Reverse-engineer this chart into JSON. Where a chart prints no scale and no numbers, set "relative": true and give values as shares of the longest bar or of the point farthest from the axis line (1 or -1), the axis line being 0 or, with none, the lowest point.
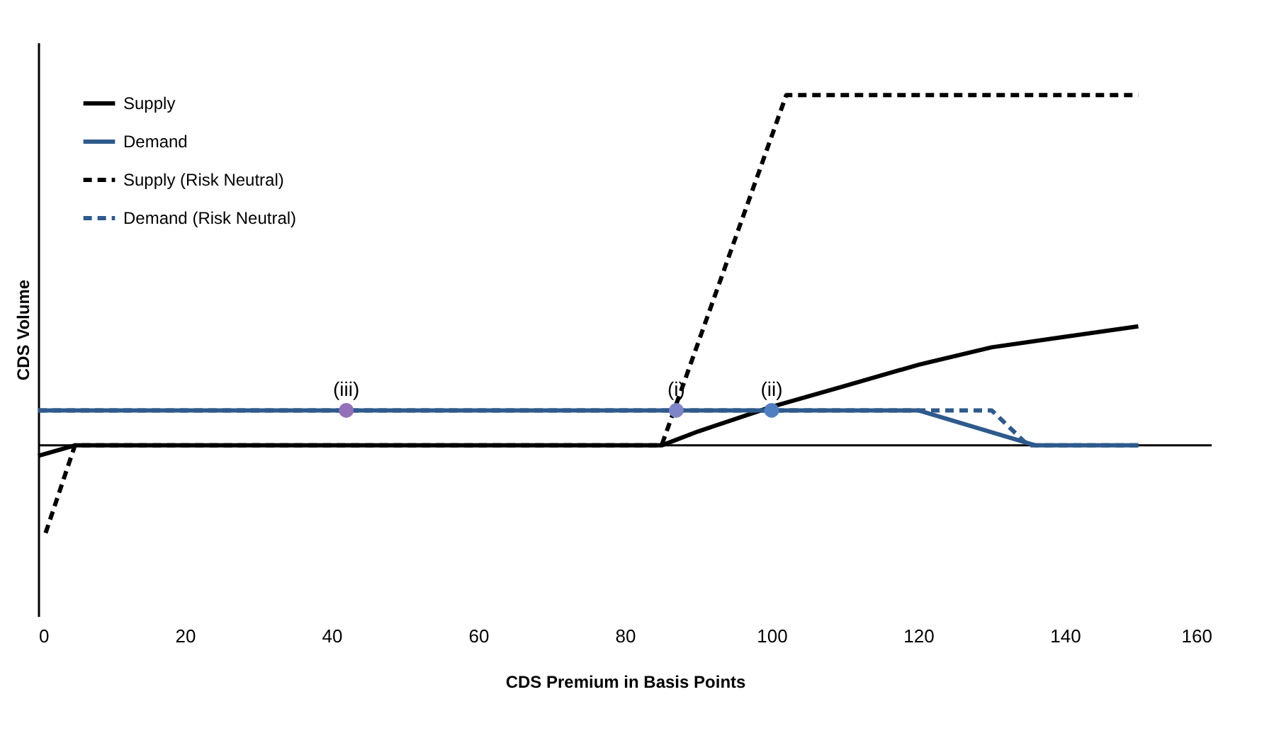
{
  "chart_data": {
    "type": "line",
    "relative": true,
    "xlabel": "CDS Premium in Basis Points",
    "ylabel": "CDS Volume",
    "xlim": [
      0,
      160
    ],
    "xticks": [
      0,
      20,
      40,
      60,
      80,
      100,
      120,
      140,
      160
    ],
    "legend": "top left",
    "grid": false,
    "series": [
      {
        "name": "Supply",
        "color": "#000000",
        "line_style": "solid",
        "x": [
          0,
          5,
          85,
          90,
          100,
          110,
          120,
          130,
          140,
          150
        ],
        "values": [
          -0.03,
          0,
          0,
          0.04,
          0.11,
          0.17,
          0.23,
          0.28,
          0.31,
          0.34
        ]
      },
      {
        "name": "Demand",
        "color": "#2e5a8c",
        "line_style": "solid",
        "x": [
          0,
          120,
          136,
          150
        ],
        "values": [
          0.1,
          0.1,
          0,
          0
        ]
      },
      {
        "name": "Supply (Risk Neutral)",
        "color": "#000000",
        "line_style": "dashed",
        "x": [
          1,
          5,
          85,
          102,
          150
        ],
        "values": [
          -0.25,
          0,
          0,
          1,
          1
        ]
      },
      {
        "name": "Demand (Risk Neutral)",
        "color": "#2e5a8c",
        "line_style": "dashed",
        "x": [
          0,
          130,
          135,
          150
        ],
        "values": [
          0.1,
          0.1,
          0,
          0
        ]
      },
      {
        "type": "scatter",
        "marker": "circle",
        "colors": [
          "#9370b8",
          "#7f86c8",
          "#4f7fc0"
        ],
        "x": [
          42,
          87,
          100
        ],
        "values": [
          0.1,
          0.1,
          0.1
        ]
      }
    ],
    "annotations": [
      {
        "text": "(iii)",
        "x": 42,
        "y": 0.1
      },
      {
        "text": "(i)",
        "x": 87,
        "y": 0.1
      },
      {
        "text": "(ii)",
        "x": 100,
        "y": 0.1
      }
    ]
  }
}
